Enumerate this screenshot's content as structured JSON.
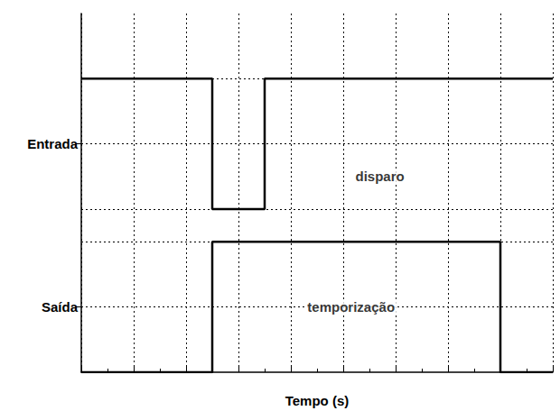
{
  "chart_data": {
    "type": "step",
    "x_label": "Tempo (s)",
    "xlim": [
      0,
      9
    ],
    "xticks": [
      0,
      1,
      2,
      3,
      4,
      5,
      6,
      7,
      8,
      9
    ],
    "ylim": [
      0,
      11
    ],
    "yticks": [
      {
        "value": 2,
        "label": "Saída"
      },
      {
        "value": 7,
        "label": "Entrada"
      }
    ],
    "tick_labels": "y",
    "grid": true,
    "series": [
      {
        "x": [
          0,
          2.5,
          3.5,
          9
        ],
        "values": [
          9,
          5,
          9,
          9
        ],
        "color": "#000000"
      },
      {
        "x": [
          0,
          2.5,
          8,
          9
        ],
        "values": [
          0,
          4,
          0,
          0
        ],
        "color": "#000000"
      }
    ],
    "annotations": [
      {
        "text": "disparo",
        "x": 5.7,
        "y": 6
      },
      {
        "text": "temporização",
        "x": 5.15,
        "y": 2
      }
    ]
  }
}
